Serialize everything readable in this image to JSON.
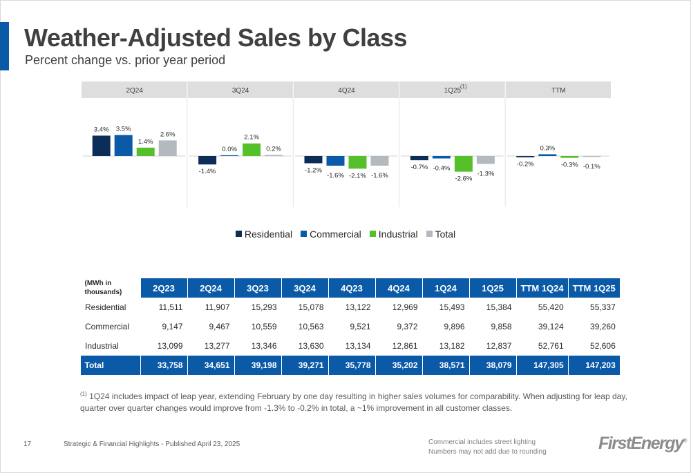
{
  "header": {
    "title": "Weather-Adjusted Sales by Class",
    "subtitle": "Percent change vs. prior year period"
  },
  "colors": {
    "accent": "#0a5aa8",
    "residential": "#0c2d57",
    "commercial": "#0a5aa8",
    "industrial": "#56c02b",
    "total": "#b4b8bf",
    "panel_header": "#dedede"
  },
  "chart_data": {
    "type": "bar",
    "categories": [
      "2Q24",
      "3Q24",
      "4Q24",
      "1Q25",
      "TTM"
    ],
    "category_notes": [
      "",
      "",
      "",
      "(1)",
      ""
    ],
    "series": [
      {
        "name": "Residential",
        "values": [
          3.4,
          -1.4,
          -1.2,
          -0.7,
          -0.2
        ],
        "labels": [
          "3.4%",
          "-1.4%",
          "-1.2%",
          "-0.7%",
          "-0.2%"
        ]
      },
      {
        "name": "Commercial",
        "values": [
          3.5,
          0.0,
          -1.6,
          -0.4,
          0.3
        ],
        "labels": [
          "3.5%",
          "0.0%",
          "-1.6%",
          "-0.4%",
          "0.3%"
        ]
      },
      {
        "name": "Industrial",
        "values": [
          1.4,
          2.1,
          -2.1,
          -2.6,
          -0.3
        ],
        "labels": [
          "1.4%",
          "2.1%",
          "-2.1%",
          "-2.6%",
          "-0.3%"
        ]
      },
      {
        "name": "Total",
        "values": [
          2.6,
          0.2,
          -1.6,
          -1.3,
          -0.1
        ],
        "labels": [
          "2.6%",
          "0.2%",
          "-1.6%",
          "-1.3%",
          "-0.1%"
        ]
      }
    ],
    "legend_position": "bottom",
    "grid": false
  },
  "table": {
    "unit_label": "(MWh in thousands)",
    "columns": [
      "2Q23",
      "2Q24",
      "3Q23",
      "3Q24",
      "4Q23",
      "4Q24",
      "1Q24",
      "1Q25",
      "TTM 1Q24",
      "TTM 1Q25"
    ],
    "rows": [
      {
        "label": "Residential",
        "values": [
          "11,511",
          "11,907",
          "15,293",
          "15,078",
          "13,122",
          "12,969",
          "15,493",
          "15,384",
          "55,420",
          "55,337"
        ]
      },
      {
        "label": "Commercial",
        "values": [
          "9,147",
          "9,467",
          "10,559",
          "10,563",
          "9,521",
          "9,372",
          "9,896",
          "9,858",
          "39,124",
          "39,260"
        ]
      },
      {
        "label": "Industrial",
        "values": [
          "13,099",
          "13,277",
          "13,346",
          "13,630",
          "13,134",
          "12,861",
          "13,182",
          "12,837",
          "52,761",
          "52,606"
        ]
      },
      {
        "label": "Total",
        "values": [
          "33,758",
          "34,651",
          "39,198",
          "39,271",
          "35,778",
          "35,202",
          "38,571",
          "38,079",
          "147,305",
          "147,203"
        ]
      }
    ]
  },
  "footnote": {
    "marker": "(1)",
    "text": "1Q24 includes impact of leap year, extending February by one day resulting in higher sales volumes for comparability.  When adjusting for leap day, quarter over quarter changes would improve from -1.3% to -0.2% in total, a ~1% improvement in all customer classes."
  },
  "footer": {
    "page_number": "17",
    "text": "Strategic & Financial Highlights - Published April 23, 2025",
    "note1": "Commercial includes street lighting",
    "note2": "Numbers may not add due to rounding",
    "logo_text": "FirstEnergy",
    "logo_mark": "®"
  }
}
